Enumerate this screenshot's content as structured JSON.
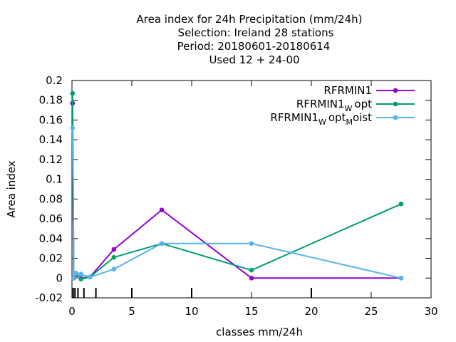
{
  "chart_data": {
    "type": "line",
    "title_lines": [
      "Area index  for 24h Precipitation (mm/24h)",
      "Selection: Ireland      28 stations",
      "Period: 20180601-20180614",
      "Used  12 + 24-00"
    ],
    "xlabel": "classes mm/24h",
    "ylabel": "Area index",
    "xlim": [
      0,
      30
    ],
    "ylim": [
      -0.02,
      0.2
    ],
    "x_ticks": [
      0,
      5,
      10,
      15,
      20,
      25,
      30
    ],
    "y_ticks": [
      -0.02,
      0,
      0.02,
      0.04,
      0.06,
      0.08,
      0.1,
      0.12,
      0.14,
      0.16,
      0.18,
      0.2
    ],
    "y_tick_labels": [
      "-0.02",
      "0",
      "0.02",
      "0.04",
      "0.06",
      "0.08",
      "0.1",
      "0.12",
      "0.14",
      "0.16",
      "0.18",
      "0.2"
    ],
    "grid": false,
    "legend_position": "top-right",
    "class_marks": [
      0.1,
      0.25,
      0.5,
      1,
      2,
      5,
      10,
      20
    ],
    "series": [
      {
        "name": "RFRMIN1",
        "color": "#9400d3",
        "x": [
          0.05,
          0.15,
          0.35,
          0.75,
          1.5,
          3.5,
          7.5,
          15,
          27.5
        ],
        "y": [
          0.177,
          0.0,
          0.003,
          0.0,
          0.001,
          0.029,
          0.069,
          0.0,
          0.0
        ]
      },
      {
        "name": "RFRMIN1",
        "name_sub": "W",
        "name_suffix": "opt",
        "color": "#009e73",
        "x": [
          0.05,
          0.15,
          0.35,
          0.75,
          1.5,
          3.5,
          7.5,
          15,
          27.5
        ],
        "y": [
          0.187,
          0.0,
          0.004,
          -0.001,
          0.001,
          0.021,
          0.035,
          0.008,
          0.075
        ]
      },
      {
        "name": "RFRMIN1",
        "name_sub": "W",
        "name_mid": "opt",
        "name_sub2": "M",
        "name_suffix": "oist",
        "color": "#56b4e9",
        "x": [
          0.05,
          0.15,
          0.35,
          0.75,
          1.5,
          3.5,
          7.5,
          15,
          27.5
        ],
        "y": [
          0.152,
          0.0,
          0.005,
          0.004,
          0.001,
          0.009,
          0.035,
          0.035,
          0.0
        ]
      }
    ]
  }
}
